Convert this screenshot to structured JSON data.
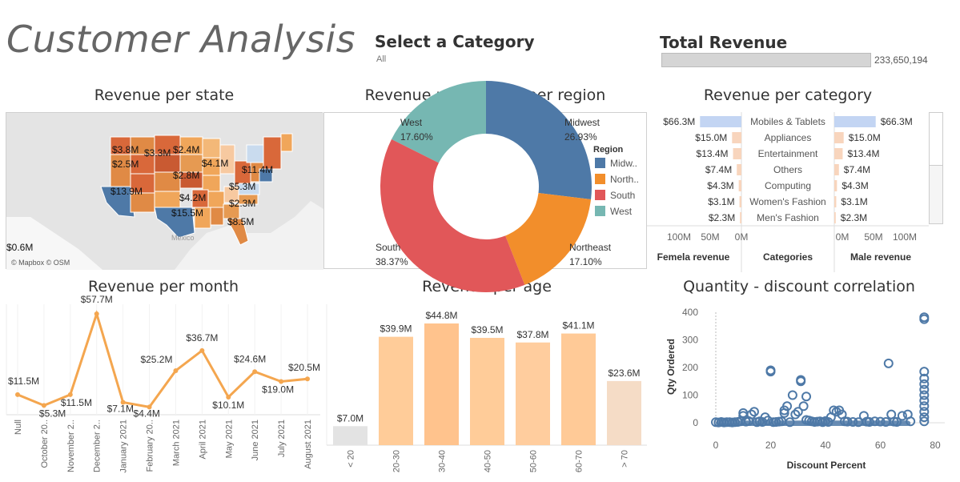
{
  "header": {
    "title": "Customer Analysis",
    "filter_label": "Select a Category",
    "filter_value": "All",
    "revenue_label": "Total Revenue",
    "revenue_value": "233,650,194",
    "revenue_fill_fraction": 1.0
  },
  "panels": {
    "state": "Revenue per state",
    "region": "Revenue percentage per region",
    "category": "Revenue per category",
    "month": "Revenue per month",
    "age": "Revenue per age",
    "scatter": "Quantity - discount correlation"
  },
  "map": {
    "labels": [
      "$3.8M",
      "$3.3M",
      "$2.4M",
      "$2.5M",
      "$2.8M",
      "$4.1M",
      "$11.4M",
      "$13.9M",
      "$4.2M",
      "$5.3M",
      "$2.3M",
      "$15.5M",
      "$8.5M",
      "$0.6M"
    ],
    "country_label": "Mexico",
    "attribution": "© Mapbox © OSM"
  },
  "chart_data": [
    {
      "type": "pie",
      "title": "Revenue percentage per region",
      "legend_title": "Region",
      "legend_entries": [
        "Midw..",
        "North..",
        "South",
        "West"
      ],
      "categories": [
        "Midwest",
        "Northeast",
        "South",
        "West"
      ],
      "values": [
        26.93,
        17.1,
        38.37,
        17.6
      ],
      "value_labels": [
        "26.93%",
        "17.10%",
        "38.37%",
        "17.60%"
      ],
      "colors": [
        "#4e79a7",
        "#f28e2b",
        "#e15759",
        "#76b7b2"
      ]
    },
    {
      "type": "bar",
      "title": "Revenue per category",
      "categories": [
        "Mobiles & Tablets",
        "Appliances",
        "Entertainment",
        "Others",
        "Computing",
        "Women's Fashion",
        "Men's Fashion"
      ],
      "series": [
        {
          "name": "Femela revenue",
          "values": [
            66.3,
            15.0,
            13.4,
            7.4,
            4.3,
            3.1,
            2.3
          ],
          "labels": [
            "$66.3M",
            "$15.0M",
            "$13.4M",
            "$7.4M",
            "$4.3M",
            "$3.1M",
            "$2.3M"
          ]
        },
        {
          "name": "Male revenue",
          "values": [
            66.3,
            15.0,
            13.4,
            7.4,
            4.3,
            3.1,
            2.3
          ],
          "labels": [
            "$66.3M",
            "$15.0M",
            "$13.4M",
            "$7.4M",
            "$4.3M",
            "$3.1M",
            "$2.3M"
          ]
        }
      ],
      "xlabel_center": "Categories",
      "left_ticks": [
        "100M",
        "50M",
        "0M"
      ],
      "right_ticks": [
        "0M",
        "50M",
        "100M"
      ],
      "xlim": [
        0,
        100
      ]
    },
    {
      "type": "line",
      "title": "Revenue per month",
      "categories": [
        "Null",
        "October 20..",
        "November 2..",
        "December 2..",
        "January 2021",
        "February 20..",
        "March 2021",
        "April 2021",
        "May 2021",
        "June 2021",
        "July 2021",
        "August 2021"
      ],
      "values": [
        11.5,
        5.3,
        11.5,
        57.7,
        7.1,
        4.4,
        25.2,
        36.7,
        10.1,
        24.6,
        19.0,
        20.5
      ],
      "labels": [
        "$11.5M",
        "$5.3M",
        "$11.5M",
        "$57.7M",
        "$7.1M",
        "$4.4M",
        "$25.2M",
        "$36.7M",
        "$10.1M",
        "$24.6M",
        "$19.0M",
        "$20.5M"
      ],
      "color": "#f4a64f"
    },
    {
      "type": "bar",
      "title": "Revenue per age",
      "categories": [
        "< 20",
        "20-30",
        "30-40",
        "40-50",
        "50-60",
        "60-70",
        "> 70"
      ],
      "values": [
        7.0,
        39.9,
        44.8,
        39.5,
        37.8,
        41.1,
        23.6
      ],
      "labels": [
        "$7.0M",
        "$39.9M",
        "$44.8M",
        "$39.5M",
        "$37.8M",
        "$41.1M",
        "$23.6M"
      ],
      "colors": [
        "#e3e3e3",
        "#ffcc99",
        "#ffc38d",
        "#ffcc99",
        "#ffcd9e",
        "#ffca97",
        "#f5dcc6"
      ]
    },
    {
      "type": "scatter",
      "title": "Quantity - discount correlation",
      "xlabel": "Discount Percent",
      "ylabel": "Qty Ordered",
      "xlim": [
        0,
        80
      ],
      "ylim": [
        0,
        400
      ],
      "x_ticks": [
        0,
        20,
        40,
        60,
        80
      ],
      "y_ticks": [
        0,
        100,
        200,
        300,
        400
      ],
      "color": "#4e79a7",
      "points": [
        {
          "x": 0,
          "y": 2
        },
        {
          "x": 1,
          "y": 1
        },
        {
          "x": 2,
          "y": 3
        },
        {
          "x": 3,
          "y": 1
        },
        {
          "x": 4,
          "y": 2
        },
        {
          "x": 5,
          "y": 2
        },
        {
          "x": 6,
          "y": 1
        },
        {
          "x": 7,
          "y": 2
        },
        {
          "x": 8,
          "y": 3
        },
        {
          "x": 9,
          "y": 5
        },
        {
          "x": 10,
          "y": 25
        },
        {
          "x": 10,
          "y": 35
        },
        {
          "x": 11,
          "y": 4
        },
        {
          "x": 12,
          "y": 6
        },
        {
          "x": 13,
          "y": 30
        },
        {
          "x": 14,
          "y": 40
        },
        {
          "x": 15,
          "y": 2
        },
        {
          "x": 16,
          "y": 5
        },
        {
          "x": 17,
          "y": 3
        },
        {
          "x": 18,
          "y": 20
        },
        {
          "x": 19,
          "y": 8
        },
        {
          "x": 20,
          "y": 190
        },
        {
          "x": 20,
          "y": 185
        },
        {
          "x": 21,
          "y": 2
        },
        {
          "x": 22,
          "y": 3
        },
        {
          "x": 23,
          "y": 4
        },
        {
          "x": 24,
          "y": 5
        },
        {
          "x": 25,
          "y": 35
        },
        {
          "x": 25,
          "y": 45
        },
        {
          "x": 26,
          "y": 60
        },
        {
          "x": 27,
          "y": 2
        },
        {
          "x": 28,
          "y": 100
        },
        {
          "x": 29,
          "y": 30
        },
        {
          "x": 30,
          "y": 40
        },
        {
          "x": 31,
          "y": 150
        },
        {
          "x": 31,
          "y": 155
        },
        {
          "x": 32,
          "y": 60
        },
        {
          "x": 33,
          "y": 10
        },
        {
          "x": 33,
          "y": 95
        },
        {
          "x": 34,
          "y": 8
        },
        {
          "x": 35,
          "y": 5
        },
        {
          "x": 36,
          "y": 3
        },
        {
          "x": 37,
          "y": 4
        },
        {
          "x": 38,
          "y": 5
        },
        {
          "x": 39,
          "y": 2
        },
        {
          "x": 40,
          "y": 6
        },
        {
          "x": 41,
          "y": 3
        },
        {
          "x": 42,
          "y": 20
        },
        {
          "x": 43,
          "y": 45
        },
        {
          "x": 44,
          "y": 40
        },
        {
          "x": 45,
          "y": 45
        },
        {
          "x": 46,
          "y": 30
        },
        {
          "x": 47,
          "y": 5
        },
        {
          "x": 48,
          "y": 4
        },
        {
          "x": 50,
          "y": 3
        },
        {
          "x": 52,
          "y": 2
        },
        {
          "x": 54,
          "y": 25
        },
        {
          "x": 55,
          "y": 4
        },
        {
          "x": 56,
          "y": 3
        },
        {
          "x": 58,
          "y": 5
        },
        {
          "x": 60,
          "y": 4
        },
        {
          "x": 62,
          "y": 3
        },
        {
          "x": 63,
          "y": 215
        },
        {
          "x": 64,
          "y": 30
        },
        {
          "x": 65,
          "y": 4
        },
        {
          "x": 66,
          "y": 3
        },
        {
          "x": 68,
          "y": 25
        },
        {
          "x": 70,
          "y": 30
        },
        {
          "x": 71,
          "y": 5
        },
        {
          "x": 76,
          "y": 5
        },
        {
          "x": 76,
          "y": 20
        },
        {
          "x": 76,
          "y": 40
        },
        {
          "x": 76,
          "y": 60
        },
        {
          "x": 76,
          "y": 80
        },
        {
          "x": 76,
          "y": 100
        },
        {
          "x": 76,
          "y": 120
        },
        {
          "x": 76,
          "y": 140
        },
        {
          "x": 76,
          "y": 160
        },
        {
          "x": 76,
          "y": 185
        },
        {
          "x": 76,
          "y": 375
        },
        {
          "x": 76,
          "y": 382
        }
      ]
    }
  ]
}
